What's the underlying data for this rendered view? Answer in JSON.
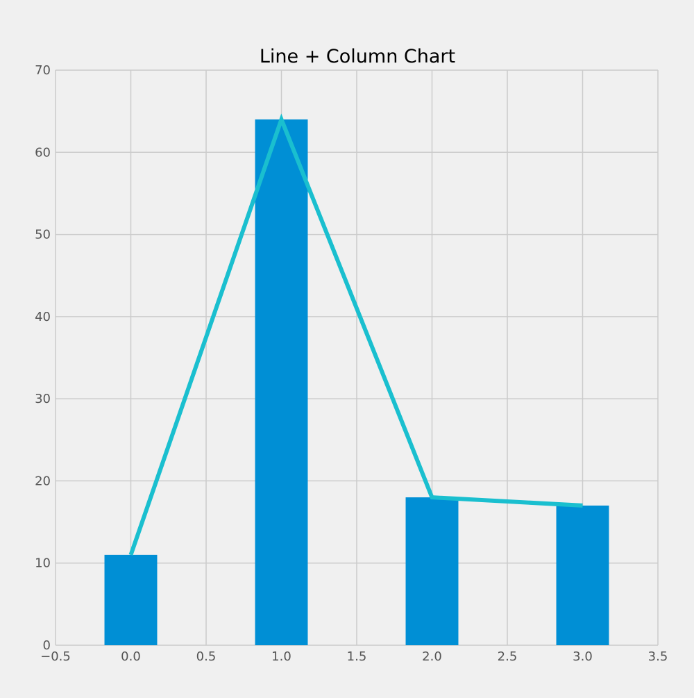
{
  "chart_data": {
    "type": "bar",
    "title": "Line + Column Chart",
    "xlabel": "",
    "ylabel": "",
    "x": [
      0,
      1,
      2,
      3
    ],
    "series": [
      {
        "kind": "bar",
        "values": [
          11,
          64,
          18,
          17
        ],
        "color": "#008fd5"
      },
      {
        "kind": "line",
        "values": [
          11,
          64,
          18,
          17
        ],
        "color": "#1abfcf"
      }
    ],
    "bar_width": 0.35,
    "xlim": [
      -0.5,
      3.5
    ],
    "ylim": [
      0,
      70
    ],
    "xticks": [
      -0.5,
      0.0,
      0.5,
      1.0,
      1.5,
      2.0,
      2.5,
      3.0,
      3.5
    ],
    "xtick_labels": [
      "−0.5",
      "0.0",
      "0.5",
      "1.0",
      "1.5",
      "2.0",
      "2.5",
      "3.0",
      "3.5"
    ],
    "yticks": [
      0,
      10,
      20,
      30,
      40,
      50,
      60,
      70
    ],
    "ytick_labels": [
      "0",
      "10",
      "20",
      "30",
      "40",
      "50",
      "60",
      "70"
    ],
    "grid": true,
    "legend": "none",
    "colors": {
      "background": "#f0f0f0",
      "grid": "#cbcbcb",
      "tick_text": "#555555",
      "title_text": "#000000"
    }
  }
}
